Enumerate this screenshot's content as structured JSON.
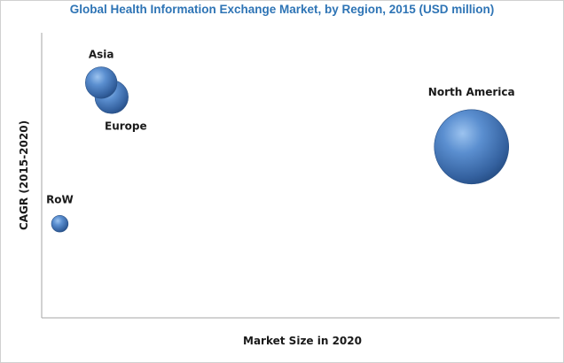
{
  "chart_data": {
    "type": "scatter",
    "title": "Global Health Information Exchange Market, by Region, 2015 (USD million)",
    "xlabel": "Market Size in 2020",
    "ylabel": "CAGR (2015-2020)",
    "grid": false,
    "legend": "none",
    "bubble_color": "#3d6fae",
    "series": [
      {
        "name": "North America",
        "x": 83.0,
        "y": 60.0,
        "size": 100
      },
      {
        "name": "Asia",
        "x": 11.5,
        "y": 82.5,
        "size": 18
      },
      {
        "name": "Europe",
        "x": 13.5,
        "y": 77.5,
        "size": 20
      },
      {
        "name": "RoW",
        "x": 3.5,
        "y": 33.0,
        "size": 5
      }
    ]
  }
}
